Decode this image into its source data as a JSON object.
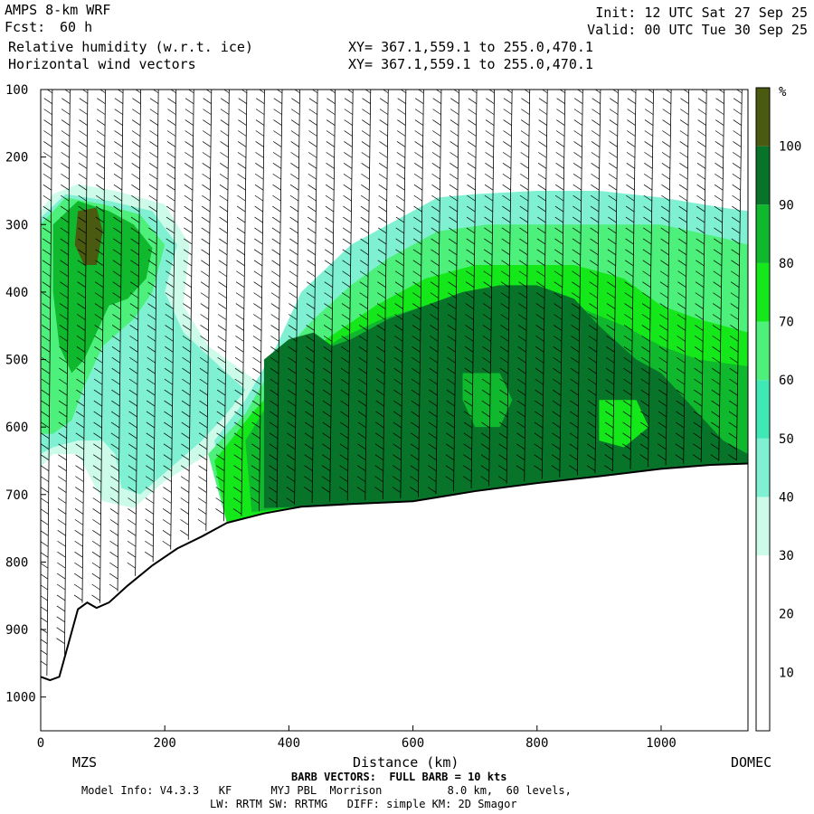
{
  "header": {
    "model": "AMPS 8-km WRF",
    "fcst_label": "Fcst:",
    "fcst_value": "60 h",
    "field1": "Relative humidity (w.r.t. ice)",
    "field2": "Horizontal wind vectors",
    "init": "Init: 12 UTC Sat 27 Sep 25",
    "valid": "Valid: 00 UTC Tue 30 Sep 25",
    "xy1": "XY= 367.1,559.1 to 255.0,470.1",
    "xy2": "XY= 367.1,559.1 to 255.0,470.1"
  },
  "footer": {
    "left_station": "MZS",
    "right_station": "DOMEC",
    "xlabel": "Distance (km)",
    "barb_note": "BARB VECTORS:  FULL BARB = 10 kts",
    "model_info_1": "Model Info: V4.3.3   KF      MYJ PBL  Morrison          8.0 km,  60 levels,",
    "model_info_2": "LW: RRTM SW: RRTMG   DIFF: simple KM: 2D Smagor"
  },
  "chart_data": {
    "type": "heatmap",
    "title": "Relative humidity (w.r.t. ice)",
    "overlay": "Horizontal wind vectors (barbs)",
    "xlabel": "Distance (km)",
    "ylabel": "",
    "xlim": [
      0,
      1140
    ],
    "ylim": [
      1050,
      100
    ],
    "xticks": [
      0,
      200,
      400,
      600,
      800,
      1000
    ],
    "yticks": [
      100,
      200,
      300,
      400,
      500,
      600,
      700,
      800,
      900,
      1000
    ],
    "colorbar": {
      "unit": "%",
      "bounds": [
        0,
        10,
        20,
        30,
        40,
        50,
        60,
        70,
        80,
        90,
        100,
        110
      ],
      "labels": [
        "10",
        "20",
        "30",
        "40",
        "50",
        "60",
        "70",
        "80",
        "90",
        "100"
      ],
      "colors": [
        "#ffffff",
        "#ffffff",
        "#ffffff",
        "#cdfbea",
        "#7ff0d2",
        "#3fe8b4",
        "#4df07a",
        "#15e81a",
        "#0fb82c",
        "#08742a",
        "#4a5a10"
      ]
    },
    "terrain_pressure": [
      {
        "x": 0,
        "p": 970
      },
      {
        "x": 15,
        "p": 975
      },
      {
        "x": 30,
        "p": 970
      },
      {
        "x": 45,
        "p": 920
      },
      {
        "x": 60,
        "p": 870
      },
      {
        "x": 75,
        "p": 860
      },
      {
        "x": 90,
        "p": 868
      },
      {
        "x": 110,
        "p": 860
      },
      {
        "x": 140,
        "p": 835
      },
      {
        "x": 180,
        "p": 805
      },
      {
        "x": 220,
        "p": 780
      },
      {
        "x": 260,
        "p": 762
      },
      {
        "x": 300,
        "p": 742
      },
      {
        "x": 360,
        "p": 728
      },
      {
        "x": 420,
        "p": 718
      },
      {
        "x": 500,
        "p": 714
      },
      {
        "x": 600,
        "p": 710
      },
      {
        "x": 700,
        "p": 695
      },
      {
        "x": 800,
        "p": 683
      },
      {
        "x": 900,
        "p": 673
      },
      {
        "x": 1000,
        "p": 662
      },
      {
        "x": 1080,
        "p": 656
      },
      {
        "x": 1140,
        "p": 654
      }
    ],
    "rh_regions": [
      {
        "rh": 35,
        "poly": [
          [
            0,
            280
          ],
          [
            20,
            255
          ],
          [
            60,
            240
          ],
          [
            120,
            250
          ],
          [
            200,
            270
          ],
          [
            240,
            330
          ],
          [
            230,
            420
          ],
          [
            270,
            480
          ],
          [
            330,
            520
          ],
          [
            360,
            540
          ],
          [
            320,
            590
          ],
          [
            270,
            640
          ],
          [
            200,
            680
          ],
          [
            150,
            720
          ],
          [
            100,
            710
          ],
          [
            60,
            640
          ],
          [
            20,
            640
          ],
          [
            0,
            660
          ]
        ]
      },
      {
        "rh": 45,
        "poly": [
          [
            0,
            290
          ],
          [
            40,
            255
          ],
          [
            110,
            265
          ],
          [
            180,
            280
          ],
          [
            220,
            330
          ],
          [
            200,
            400
          ],
          [
            230,
            460
          ],
          [
            300,
            520
          ],
          [
            330,
            545
          ],
          [
            300,
            580
          ],
          [
            260,
            620
          ],
          [
            210,
            660
          ],
          [
            160,
            700
          ],
          [
            130,
            690
          ],
          [
            120,
            640
          ],
          [
            100,
            620
          ],
          [
            60,
            620
          ],
          [
            20,
            630
          ],
          [
            0,
            640
          ]
        ]
      },
      {
        "rh": 65,
        "poly": [
          [
            0,
            300
          ],
          [
            40,
            260
          ],
          [
            100,
            270
          ],
          [
            160,
            285
          ],
          [
            200,
            330
          ],
          [
            180,
            400
          ],
          [
            150,
            440
          ],
          [
            100,
            480
          ],
          [
            70,
            540
          ],
          [
            50,
            590
          ],
          [
            20,
            610
          ],
          [
            0,
            610
          ]
        ]
      },
      {
        "rh": 85,
        "poly": [
          [
            20,
            300
          ],
          [
            60,
            265
          ],
          [
            110,
            280
          ],
          [
            150,
            300
          ],
          [
            180,
            335
          ],
          [
            170,
            380
          ],
          [
            140,
            410
          ],
          [
            110,
            420
          ],
          [
            90,
            460
          ],
          [
            70,
            500
          ],
          [
            50,
            520
          ],
          [
            30,
            480
          ],
          [
            20,
            400
          ]
        ]
      },
      {
        "rh": 100,
        "poly": [
          [
            60,
            280
          ],
          [
            90,
            275
          ],
          [
            100,
            310
          ],
          [
            90,
            360
          ],
          [
            70,
            360
          ],
          [
            55,
            330
          ]
        ]
      },
      {
        "rh": 45,
        "poly": [
          [
            280,
            620
          ],
          [
            330,
            560
          ],
          [
            380,
            480
          ],
          [
            420,
            400
          ],
          [
            500,
            330
          ],
          [
            560,
            300
          ],
          [
            640,
            260
          ],
          [
            700,
            255
          ],
          [
            800,
            250
          ],
          [
            900,
            250
          ],
          [
            1000,
            260
          ],
          [
            1100,
            275
          ],
          [
            1140,
            280
          ],
          [
            1140,
            654
          ],
          [
            1000,
            662
          ],
          [
            800,
            683
          ],
          [
            600,
            710
          ],
          [
            420,
            718
          ],
          [
            300,
            742
          ]
        ]
      },
      {
        "rh": 65,
        "poly": [
          [
            270,
            640
          ],
          [
            330,
            580
          ],
          [
            380,
            500
          ],
          [
            440,
            440
          ],
          [
            500,
            390
          ],
          [
            560,
            350
          ],
          [
            640,
            310
          ],
          [
            720,
            300
          ],
          [
            800,
            300
          ],
          [
            900,
            300
          ],
          [
            1000,
            300
          ],
          [
            1100,
            320
          ],
          [
            1140,
            330
          ],
          [
            1140,
            654
          ],
          [
            1000,
            662
          ],
          [
            800,
            683
          ],
          [
            600,
            710
          ],
          [
            420,
            718
          ],
          [
            300,
            742
          ]
        ]
      },
      {
        "rh": 75,
        "poly": [
          [
            280,
            650
          ],
          [
            340,
            580
          ],
          [
            400,
            520
          ],
          [
            460,
            470
          ],
          [
            540,
            420
          ],
          [
            620,
            380
          ],
          [
            700,
            360
          ],
          [
            780,
            360
          ],
          [
            860,
            360
          ],
          [
            940,
            380
          ],
          [
            1000,
            420
          ],
          [
            1060,
            440
          ],
          [
            1140,
            460
          ],
          [
            1140,
            654
          ],
          [
            1000,
            662
          ],
          [
            800,
            683
          ],
          [
            600,
            710
          ],
          [
            420,
            718
          ],
          [
            300,
            742
          ]
        ]
      },
      {
        "rh": 85,
        "poly": [
          [
            330,
            620
          ],
          [
            370,
            560
          ],
          [
            420,
            510
          ],
          [
            480,
            470
          ],
          [
            550,
            440
          ],
          [
            620,
            420
          ],
          [
            700,
            400
          ],
          [
            780,
            400
          ],
          [
            860,
            420
          ],
          [
            940,
            450
          ],
          [
            1000,
            480
          ],
          [
            1060,
            500
          ],
          [
            1140,
            510
          ],
          [
            1140,
            654
          ],
          [
            1000,
            662
          ],
          [
            800,
            683
          ],
          [
            600,
            710
          ],
          [
            420,
            718
          ],
          [
            340,
            726
          ]
        ]
      },
      {
        "rh": 95,
        "poly": [
          [
            360,
            500
          ],
          [
            400,
            470
          ],
          [
            440,
            460
          ],
          [
            470,
            480
          ],
          [
            500,
            470
          ],
          [
            560,
            440
          ],
          [
            620,
            420
          ],
          [
            680,
            400
          ],
          [
            740,
            390
          ],
          [
            800,
            390
          ],
          [
            860,
            410
          ],
          [
            900,
            450
          ],
          [
            960,
            500
          ],
          [
            1000,
            520
          ],
          [
            1040,
            560
          ],
          [
            1100,
            620
          ],
          [
            1140,
            640
          ],
          [
            1140,
            654
          ],
          [
            1000,
            662
          ],
          [
            800,
            683
          ],
          [
            600,
            710
          ],
          [
            420,
            718
          ],
          [
            360,
            720
          ]
        ]
      },
      {
        "rh": 85,
        "poly": [
          [
            680,
            520
          ],
          [
            740,
            520
          ],
          [
            760,
            560
          ],
          [
            740,
            600
          ],
          [
            700,
            600
          ],
          [
            680,
            560
          ]
        ]
      },
      {
        "rh": 75,
        "poly": [
          [
            900,
            560
          ],
          [
            960,
            560
          ],
          [
            980,
            600
          ],
          [
            940,
            630
          ],
          [
            900,
            620
          ]
        ]
      }
    ]
  }
}
